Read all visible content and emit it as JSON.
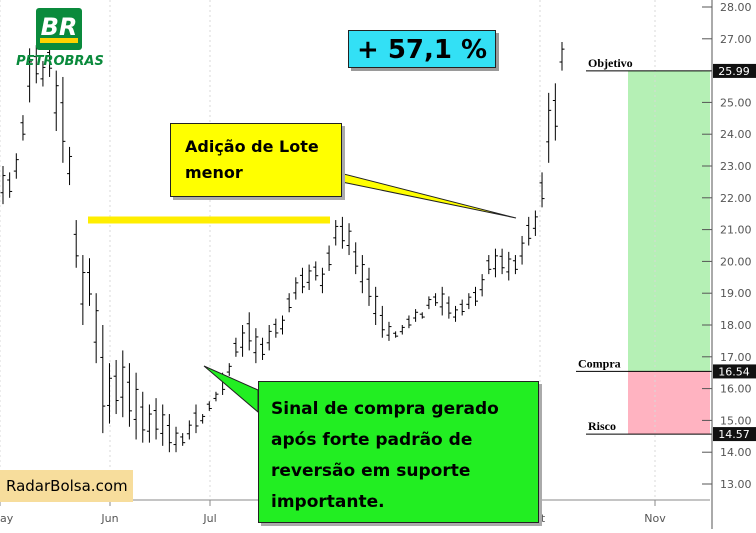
{
  "brand": {
    "logo_text": "BR",
    "company": "PETROBRAS",
    "watermark": "RadarBolsa.com"
  },
  "annotations": {
    "gain": "+ 57,1 %",
    "lot_note_lines": [
      "Adição de Lote",
      "menor"
    ],
    "buy_note_lines": [
      "Sinal de compra gerado",
      "após forte padrão de",
      "reversão em suporte",
      "importante."
    ]
  },
  "colors": {
    "target_zone": "#b5f0b5",
    "risk_zone": "#ffb3c1",
    "highlight_line": "#ffee00",
    "gain_badge": "#33e0f5",
    "buy_note": "#22ee22",
    "lot_note": "#ffff00"
  },
  "chart_data": {
    "type": "ohlc",
    "x_tick_labels": [
      "ay",
      "Jun",
      "Jul",
      "ct",
      "Nov"
    ],
    "y_ticks": [
      13.0,
      14.0,
      15.0,
      16.0,
      17.0,
      18.0,
      19.0,
      20.0,
      21.0,
      22.0,
      23.0,
      24.0,
      25.0,
      26.0,
      27.0,
      28.0
    ],
    "y_tick_labels": [
      "13.00",
      "14.00",
      "15.00",
      "16.00",
      "17.00",
      "18.00",
      "19.00",
      "20.00",
      "21.00",
      "22.00",
      "23.00",
      "24.00",
      "25.00",
      "26.00",
      "27.00",
      "28.00"
    ],
    "ylim": [
      12.6,
      28.2
    ],
    "levels": [
      {
        "name": "Objetivo",
        "value": 25.99,
        "label": "25.99"
      },
      {
        "name": "Compra",
        "value": 16.54,
        "label": "16.54"
      },
      {
        "name": "Risco",
        "value": 14.57,
        "label": "14.57"
      }
    ],
    "highlight_level": 21.3,
    "highs": [
      23.0,
      22.8,
      23.4,
      24.6,
      26.7,
      26.8,
      26.3,
      26.9,
      26.0,
      25.8,
      23.6,
      21.3,
      20.2,
      20.1,
      19.0,
      18.0,
      16.8,
      16.9,
      17.2,
      16.8,
      16.5,
      15.9,
      15.5,
      15.7,
      15.5,
      15.2,
      14.8,
      14.6,
      15.0,
      15.5,
      15.2,
      15.6,
      15.9,
      16.5,
      16.8,
      17.6,
      18.0,
      18.4,
      17.9,
      17.6,
      18.0,
      18.2,
      18.3,
      19.0,
      19.5,
      19.8,
      19.9,
      20.0,
      19.8,
      20.5,
      21.3,
      21.4,
      21.2,
      20.6,
      20.2,
      19.8,
      19.2,
      18.6,
      18.1,
      17.8,
      18.0,
      18.3,
      18.5,
      18.4,
      18.9,
      19.0,
      19.2,
      18.9,
      18.6,
      18.8,
      19.0,
      19.2,
      19.6,
      20.2,
      20.4,
      20.4,
      20.3,
      20.2,
      20.8,
      21.4,
      21.6,
      22.8,
      25.3,
      25.6,
      26.9
    ],
    "lows": [
      21.8,
      22.0,
      22.6,
      23.8,
      25.0,
      25.6,
      25.5,
      25.8,
      24.1,
      23.1,
      22.4,
      19.8,
      18.0,
      18.6,
      16.8,
      14.6,
      14.9,
      15.2,
      15.1,
      14.8,
      14.4,
      14.3,
      14.3,
      14.4,
      14.2,
      14.0,
      14.0,
      14.2,
      14.4,
      14.6,
      14.9,
      15.3,
      15.6,
      15.8,
      16.4,
      17.0,
      17.0,
      17.2,
      16.8,
      16.9,
      17.2,
      17.6,
      17.7,
      18.4,
      18.8,
      19.0,
      19.1,
      19.4,
      19.0,
      19.7,
      20.5,
      20.4,
      20.2,
      19.6,
      19.0,
      18.6,
      18.0,
      17.6,
      17.5,
      17.6,
      17.7,
      17.9,
      18.1,
      18.2,
      18.5,
      18.6,
      18.3,
      18.2,
      18.1,
      18.3,
      18.5,
      18.6,
      18.9,
      19.6,
      19.5,
      19.6,
      19.4,
      19.6,
      19.9,
      20.5,
      20.8,
      21.7,
      23.1,
      23.8,
      26.0
    ]
  }
}
